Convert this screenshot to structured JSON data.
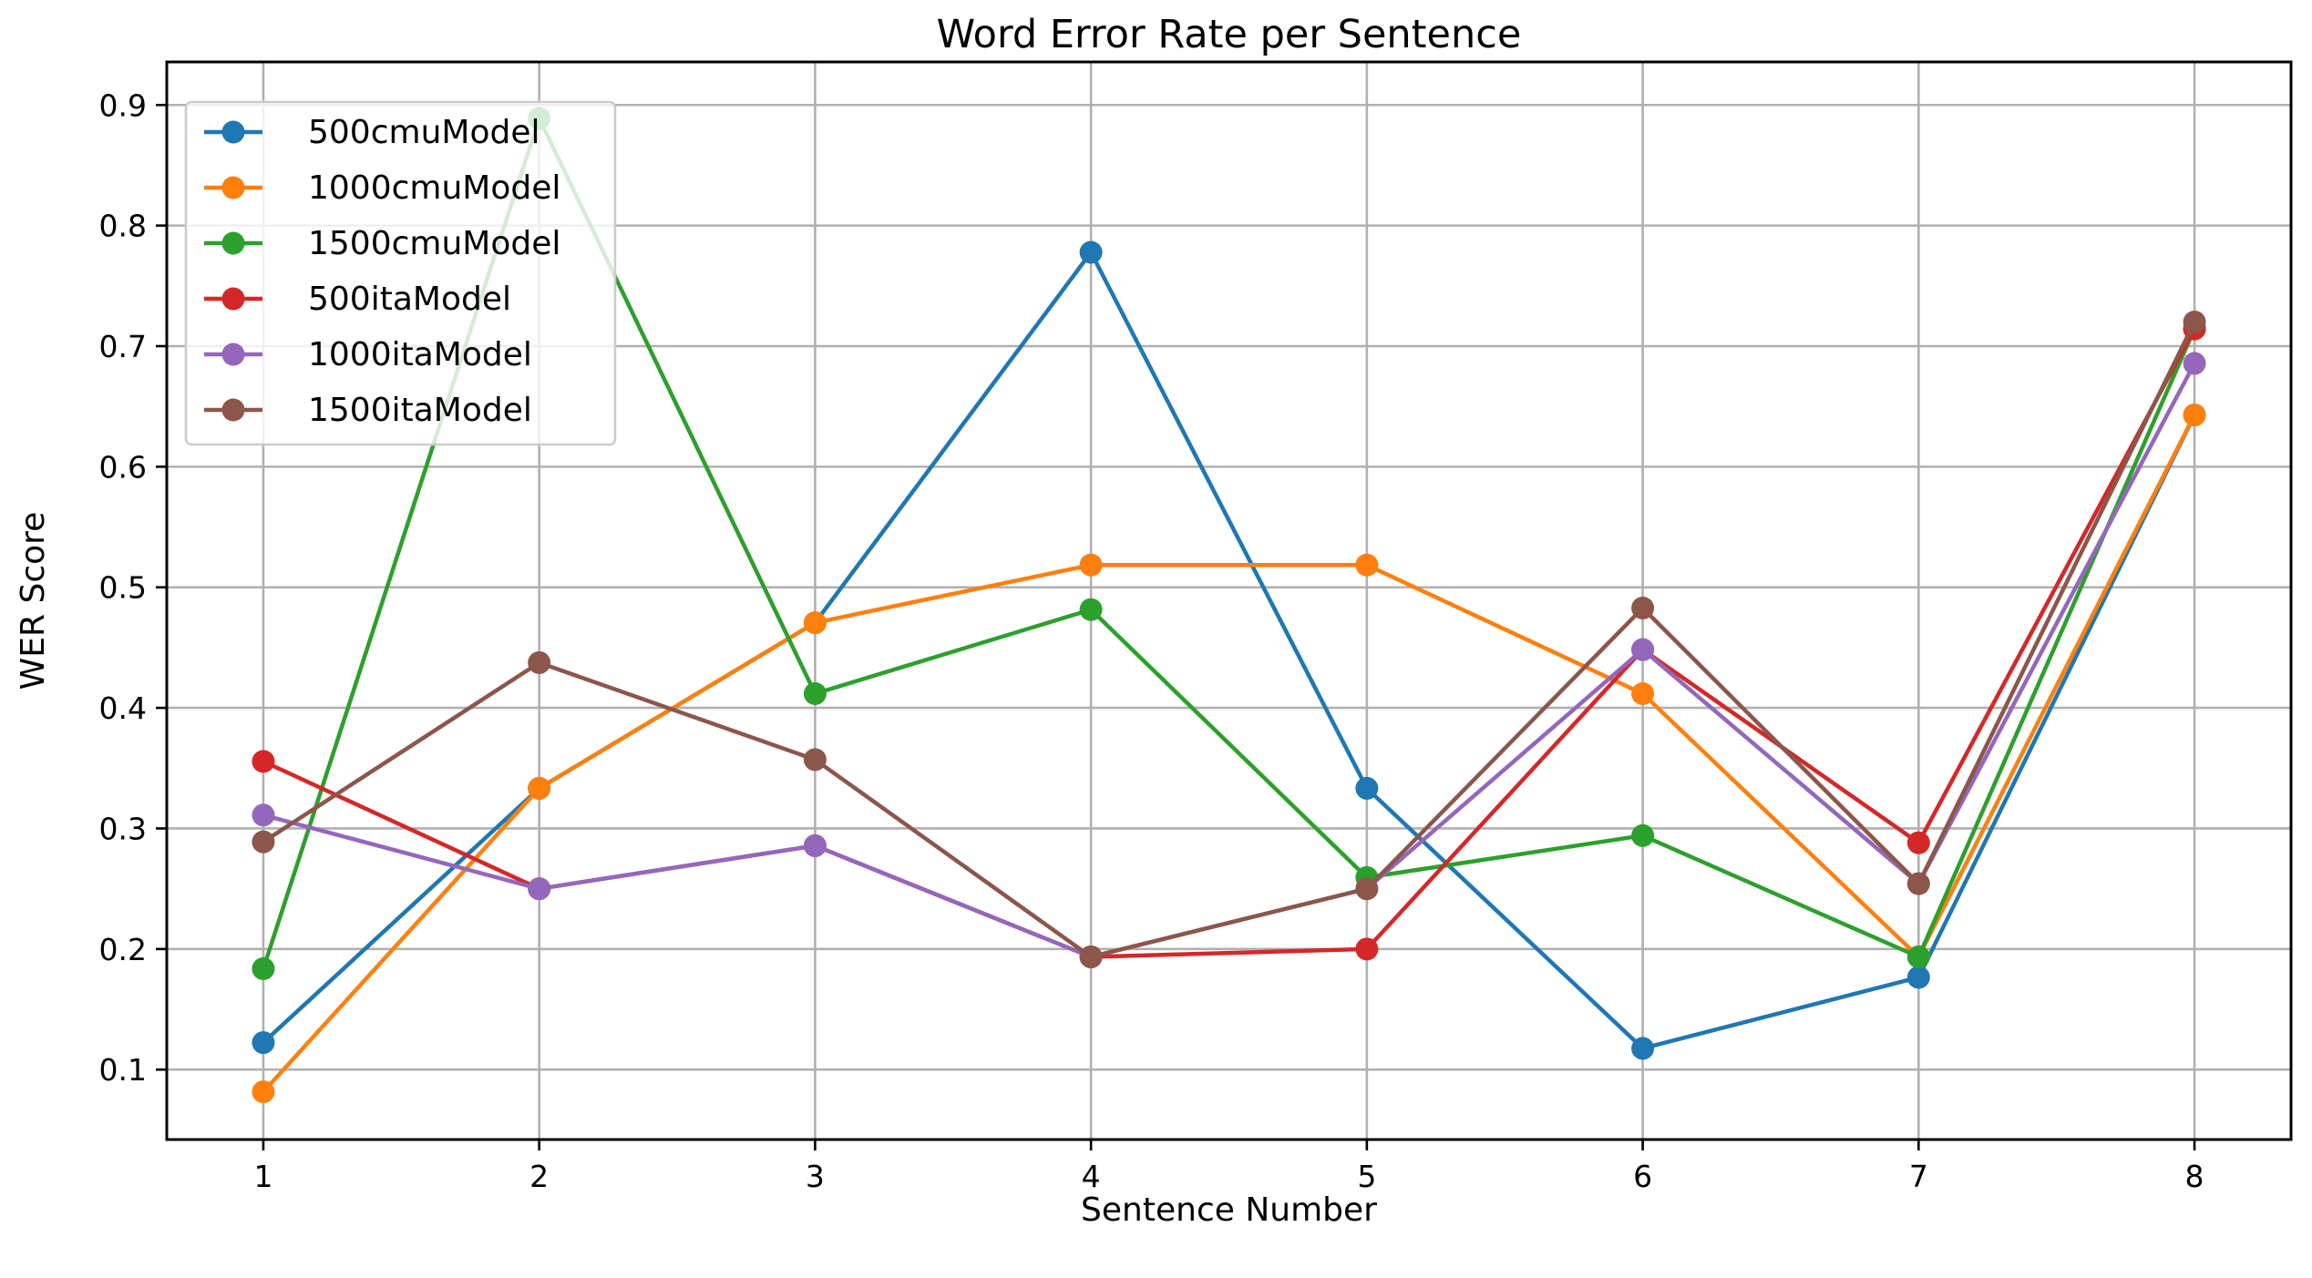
{
  "chart_data": {
    "type": "line",
    "title": "Word Error Rate per Sentence",
    "xlabel": "Sentence Number",
    "ylabel": "WER Score",
    "x": [
      1,
      2,
      3,
      4,
      5,
      6,
      7,
      8
    ],
    "x_tick_labels": [
      "1",
      "2",
      "3",
      "4",
      "5",
      "6",
      "7",
      "8"
    ],
    "xlim": [
      0.65,
      8.35
    ],
    "y_ticks": [
      0.1,
      0.2,
      0.3,
      0.4,
      0.5,
      0.6,
      0.7,
      0.8,
      0.9
    ],
    "y_tick_labels": [
      "0.1",
      "0.2",
      "0.3",
      "0.4",
      "0.5",
      "0.6",
      "0.7",
      "0.8",
      "0.9"
    ],
    "ylim": [
      0.042,
      0.9357
    ],
    "grid": true,
    "legend_position": "top-left",
    "series": [
      {
        "name": "500cmuModel",
        "color": "#1f77b4",
        "values": [
          0.1224,
          0.3333,
          0.4706,
          0.7778,
          0.3333,
          0.1176,
          0.1765,
          0.6429
        ]
      },
      {
        "name": "1000cmuModel",
        "color": "#ff7f0e",
        "values": [
          0.0816,
          0.3333,
          0.4706,
          0.5185,
          0.5185,
          0.4118,
          0.1935,
          0.6429
        ]
      },
      {
        "name": "1500cmuModel",
        "color": "#2ca02c",
        "values": [
          0.1837,
          0.8889,
          0.4118,
          0.4815,
          0.2593,
          0.2941,
          0.1935,
          0.7143
        ]
      },
      {
        "name": "500itaModel",
        "color": "#d62728",
        "values": [
          0.3556,
          0.25,
          0.2857,
          0.1935,
          0.2,
          0.4483,
          0.2881,
          0.7143
        ]
      },
      {
        "name": "1000itaModel",
        "color": "#9467bd",
        "values": [
          0.3111,
          0.25,
          0.2857,
          0.1935,
          0.25,
          0.4483,
          0.2542,
          0.6857
        ]
      },
      {
        "name": "1500itaModel",
        "color": "#8c564b",
        "values": [
          0.2889,
          0.4375,
          0.3571,
          0.1935,
          0.25,
          0.4828,
          0.2542,
          0.72
        ]
      }
    ]
  }
}
